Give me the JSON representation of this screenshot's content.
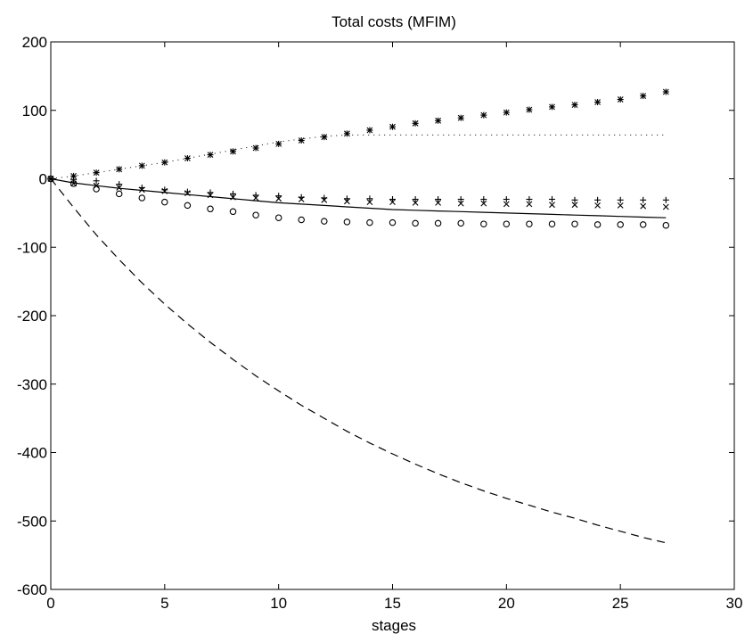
{
  "chart_data": {
    "type": "line",
    "title": "Total costs (MFIM)",
    "xlabel": "stages",
    "ylabel": "",
    "xlim": [
      0,
      30
    ],
    "ylim": [
      -600,
      200
    ],
    "xticks": [
      0,
      5,
      10,
      15,
      20,
      25,
      30
    ],
    "yticks": [
      200,
      100,
      0,
      -100,
      -200,
      -300,
      -400,
      -500,
      -600
    ],
    "grid": false,
    "series": [
      {
        "style": "dotted-line",
        "x": [
          0,
          1,
          2,
          3,
          4,
          5,
          6,
          7,
          8,
          9,
          10,
          11,
          12,
          13,
          14,
          15,
          16,
          17,
          18,
          19,
          20,
          21,
          22,
          23,
          24,
          25,
          26,
          27
        ],
        "values": [
          0,
          4,
          9,
          14,
          19,
          24,
          30,
          36,
          42,
          48,
          54,
          58,
          62,
          64,
          64,
          64,
          64,
          64,
          64,
          64,
          64,
          64,
          64,
          64,
          64,
          64,
          64,
          64
        ]
      },
      {
        "style": "solid-line",
        "x": [
          0,
          1,
          2,
          3,
          4,
          5,
          6,
          7,
          8,
          9,
          10,
          11,
          12,
          13,
          14,
          15,
          16,
          17,
          18,
          19,
          20,
          21,
          22,
          23,
          24,
          25,
          26,
          27
        ],
        "values": [
          0,
          -6,
          -10,
          -14,
          -17,
          -20,
          -23,
          -26,
          -29,
          -32,
          -35,
          -37,
          -39,
          -41,
          -43,
          -45,
          -46,
          -47,
          -48,
          -49,
          -50,
          -51,
          -52,
          -53,
          -54,
          -55,
          -56,
          -57
        ]
      },
      {
        "style": "dashed-line",
        "x": [
          0,
          1,
          2,
          3,
          4,
          5,
          6,
          7,
          8,
          9,
          10,
          11,
          12,
          13,
          14,
          15,
          16,
          17,
          18,
          19,
          20,
          21,
          22,
          23,
          24,
          25,
          26,
          27
        ],
        "values": [
          0,
          -42,
          -82,
          -118,
          -152,
          -183,
          -212,
          -239,
          -264,
          -288,
          -310,
          -331,
          -350,
          -369,
          -386,
          -402,
          -417,
          -431,
          -444,
          -456,
          -467,
          -477,
          -487,
          -496,
          -506,
          -515,
          -524,
          -532
        ]
      },
      {
        "style": "star-markers",
        "x": [
          0,
          1,
          2,
          3,
          4,
          5,
          6,
          7,
          8,
          9,
          10,
          11,
          12,
          13,
          14,
          15,
          16,
          17,
          18,
          19,
          20,
          21,
          22,
          23,
          24,
          25,
          26,
          27
        ],
        "values": [
          0,
          4,
          9,
          14,
          19,
          24,
          30,
          35,
          40,
          45,
          51,
          56,
          61,
          66,
          71,
          76,
          81,
          85,
          89,
          93,
          97,
          101,
          105,
          108,
          112,
          116,
          121,
          127
        ]
      },
      {
        "style": "plus-markers",
        "x": [
          0,
          1,
          2,
          3,
          4,
          5,
          6,
          7,
          8,
          9,
          10,
          11,
          12,
          13,
          14,
          15,
          16,
          17,
          18,
          19,
          20,
          21,
          22,
          23,
          24,
          25,
          26,
          27
        ],
        "values": [
          0,
          -1,
          -3,
          -8,
          -13,
          -16,
          -19,
          -20,
          -22,
          -24,
          -25,
          -27,
          -28,
          -29,
          -29,
          -30,
          -30,
          -30,
          -30,
          -30,
          -30,
          -30,
          -30,
          -31,
          -31,
          -31,
          -31,
          -31
        ]
      },
      {
        "style": "x-markers",
        "x": [
          0,
          1,
          2,
          3,
          4,
          5,
          6,
          7,
          8,
          9,
          10,
          11,
          12,
          13,
          14,
          15,
          16,
          17,
          18,
          19,
          20,
          21,
          22,
          23,
          24,
          25,
          26,
          27
        ],
        "values": [
          0,
          -7,
          -10,
          -13,
          -16,
          -18,
          -21,
          -24,
          -27,
          -28,
          -29,
          -30,
          -31,
          -33,
          -34,
          -34,
          -35,
          -35,
          -36,
          -36,
          -37,
          -37,
          -38,
          -38,
          -39,
          -39,
          -40,
          -41
        ]
      },
      {
        "style": "circle-markers",
        "x": [
          0,
          1,
          2,
          3,
          4,
          5,
          6,
          7,
          8,
          9,
          10,
          11,
          12,
          13,
          14,
          15,
          16,
          17,
          18,
          19,
          20,
          21,
          22,
          23,
          24,
          25,
          26,
          27
        ],
        "values": [
          0,
          -7,
          -15,
          -22,
          -28,
          -34,
          -39,
          -44,
          -48,
          -53,
          -57,
          -60,
          -62,
          -63,
          -64,
          -64,
          -65,
          -65,
          -65,
          -66,
          -66,
          -66,
          -66,
          -66,
          -67,
          -67,
          -67,
          -68
        ]
      }
    ]
  }
}
